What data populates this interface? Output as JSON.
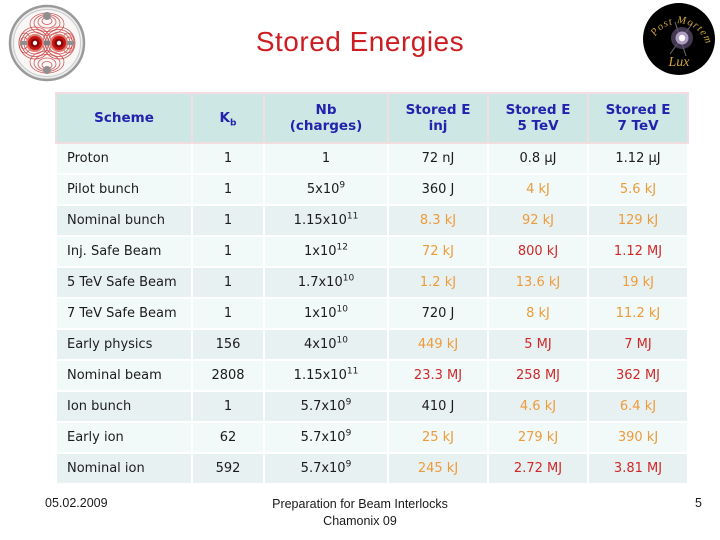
{
  "palette": {
    "title_red": "#cc1e22",
    "header_blue": "#2222ae",
    "header_bg": "#cde7e4",
    "row_light": "#f2f9f9",
    "row_dark": "#e8f1f2",
    "value_black": "#1c1c1c",
    "value_orange": "#ee9b3a",
    "value_red": "#d02828",
    "logo_gold": "#d4a83c"
  },
  "title": "Stored Energies",
  "logos": {
    "left_name": "lhc-magnet-cross-section",
    "post_mortem_arc": "Post Mortem",
    "post_mortem_script": "Lux"
  },
  "table": {
    "headers": [
      {
        "text": "Scheme"
      },
      {
        "text": "K",
        "sub": "b"
      },
      {
        "text": "Nb",
        "line2": "(charges)"
      },
      {
        "text": "Stored E",
        "line2": "inj"
      },
      {
        "text": "Stored E",
        "line2": "5 TeV"
      },
      {
        "text": "Stored E",
        "line2": "7 TeV"
      }
    ],
    "rows": [
      {
        "scheme": "Proton",
        "kb": "1",
        "nb": "1",
        "e_inj": {
          "v": "72 nJ",
          "c": "black"
        },
        "e5": {
          "v": "0.8 μJ",
          "c": "black"
        },
        "e7": {
          "v": "1.12 μJ",
          "c": "black"
        }
      },
      {
        "scheme": "Pilot bunch",
        "kb": "1",
        "nb": "5x10^9",
        "e_inj": {
          "v": "360 J",
          "c": "black"
        },
        "e5": {
          "v": "4 kJ",
          "c": "orange"
        },
        "e7": {
          "v": "5.6 kJ",
          "c": "orange"
        }
      },
      {
        "scheme": "Nominal bunch",
        "kb": "1",
        "nb": "1.15x10^11",
        "e_inj": {
          "v": "8.3 kJ",
          "c": "orange"
        },
        "e5": {
          "v": "92 kJ",
          "c": "orange"
        },
        "e7": {
          "v": "129 kJ",
          "c": "orange"
        }
      },
      {
        "scheme": "Inj. Safe Beam",
        "kb": "1",
        "nb": "1x10^12",
        "e_inj": {
          "v": "72 kJ",
          "c": "orange"
        },
        "e5": {
          "v": "800 kJ",
          "c": "red"
        },
        "e7": {
          "v": "1.12 MJ",
          "c": "red"
        }
      },
      {
        "scheme": "5 TeV Safe Beam",
        "kb": "1",
        "nb": "1.7x10^10",
        "e_inj": {
          "v": "1.2 kJ",
          "c": "orange"
        },
        "e5": {
          "v": "13.6 kJ",
          "c": "orange"
        },
        "e7": {
          "v": "19 kJ",
          "c": "orange"
        }
      },
      {
        "scheme": "7 TeV Safe Beam",
        "kb": "1",
        "nb": "1x10^10",
        "e_inj": {
          "v": "720 J",
          "c": "black"
        },
        "e5": {
          "v": "8 kJ",
          "c": "orange"
        },
        "e7": {
          "v": "11.2 kJ",
          "c": "orange"
        }
      },
      {
        "scheme": "Early physics",
        "kb": "156",
        "nb": "4x10^10",
        "e_inj": {
          "v": "449 kJ",
          "c": "orange"
        },
        "e5": {
          "v": "5 MJ",
          "c": "red"
        },
        "e7": {
          "v": "7 MJ",
          "c": "red"
        }
      },
      {
        "scheme": "Nominal beam",
        "kb": "2808",
        "nb": "1.15x10^11",
        "e_inj": {
          "v": "23.3 MJ",
          "c": "red"
        },
        "e5": {
          "v": "258 MJ",
          "c": "red"
        },
        "e7": {
          "v": "362 MJ",
          "c": "red"
        }
      },
      {
        "scheme": "Ion bunch",
        "kb": "1",
        "nb": "5.7x10^9",
        "e_inj": {
          "v": "410 J",
          "c": "black"
        },
        "e5": {
          "v": "4.6 kJ",
          "c": "orange"
        },
        "e7": {
          "v": "6.4 kJ",
          "c": "orange"
        }
      },
      {
        "scheme": "Early ion",
        "kb": "62",
        "nb": "5.7x10^9",
        "e_inj": {
          "v": "25 kJ",
          "c": "orange"
        },
        "e5": {
          "v": "279 kJ",
          "c": "orange"
        },
        "e7": {
          "v": "390 kJ",
          "c": "orange"
        }
      },
      {
        "scheme": "Nominal ion",
        "kb": "592",
        "nb": "5.7x10^9",
        "e_inj": {
          "v": "245 kJ",
          "c": "orange"
        },
        "e5": {
          "v": "2.72 MJ",
          "c": "red"
        },
        "e7": {
          "v": "3.81 MJ",
          "c": "red"
        }
      }
    ]
  },
  "footer": {
    "date": "05.02.2009",
    "center_line1": "Preparation for Beam Interlocks",
    "center_line2": "Chamonix 09",
    "page": "5"
  }
}
